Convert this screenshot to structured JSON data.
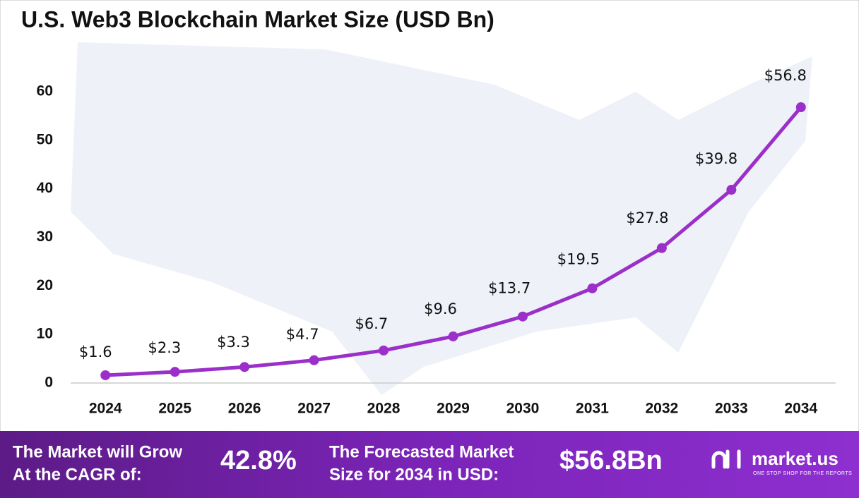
{
  "chart_data": {
    "type": "line",
    "title": "U.S. Web3 Blockchain Market Size (USD Bn)",
    "categories": [
      "2024",
      "2025",
      "2026",
      "2027",
      "2028",
      "2029",
      "2030",
      "2031",
      "2032",
      "2033",
      "2034"
    ],
    "series": [
      {
        "color": "#9b2fc9",
        "values": [
          1.6,
          2.3,
          3.3,
          4.7,
          6.7,
          9.6,
          13.7,
          19.5,
          27.8,
          39.8,
          56.8
        ],
        "value_labels": [
          "$1.6",
          "$2.3",
          "$3.3",
          "$4.7",
          "$6.7",
          "$9.6",
          "$13.7",
          "$19.5",
          "$27.8",
          "$39.8",
          "$56.8"
        ]
      }
    ],
    "ylim": [
      0,
      60
    ],
    "yticks": [
      0,
      10,
      20,
      30,
      40,
      50,
      60
    ],
    "grid": false
  },
  "footer": {
    "cagr_label": [
      "The Market will Grow",
      "At the CAGR of:"
    ],
    "cagr_value": "42.8%",
    "forecast_label": [
      "The Forecasted Market",
      "Size for 2034 in USD:"
    ],
    "forecast_value": "$56.8Bn",
    "brand": "market.us",
    "tagline": "ONE STOP SHOP FOR THE REPORTS"
  }
}
